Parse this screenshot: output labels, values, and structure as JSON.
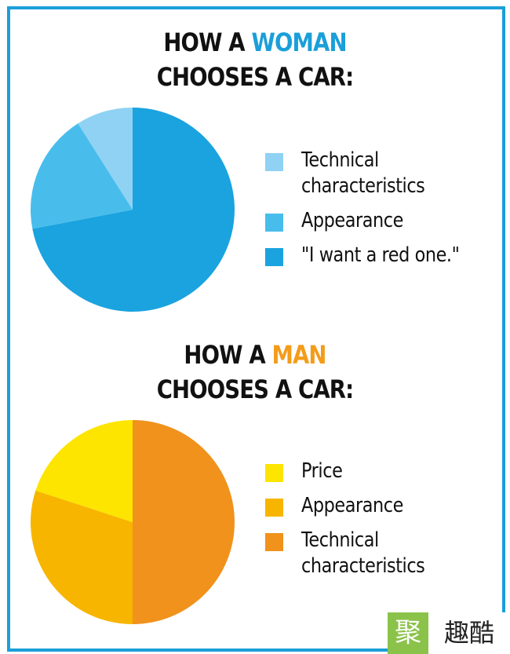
{
  "chart_data": [
    {
      "type": "pie",
      "title": {
        "prefix": "HOW A ",
        "highlight": "WOMAN",
        "line2": "CHOOSES A CAR:",
        "highlight_color": "#1a9fd9"
      },
      "slices": [
        {
          "name": "\"I want a red one.\"",
          "value": 72,
          "color": "#1aa3df"
        },
        {
          "name": "Appearance",
          "value": 19,
          "color": "#48bdec"
        },
        {
          "name": "Technical characteristics",
          "value": 9,
          "color": "#8fd2f4"
        }
      ],
      "legend": [
        {
          "label": "Technical\ncharacteristics",
          "color": "#8fd2f4"
        },
        {
          "label": "Appearance",
          "color": "#48bdec"
        },
        {
          "label": "\"I want a red one.\"",
          "color": "#1aa3df"
        }
      ],
      "legend_position": "right"
    },
    {
      "type": "pie",
      "title": {
        "prefix": "HOW A ",
        "highlight": "MAN",
        "line2": "CHOOSES A CAR:",
        "highlight_color": "#f39c1a"
      },
      "slices": [
        {
          "name": "Technical characteristics",
          "value": 50,
          "color": "#f0921c"
        },
        {
          "name": "Appearance",
          "value": 30,
          "color": "#f7b500"
        },
        {
          "name": "Price",
          "value": 20,
          "color": "#fde500"
        }
      ],
      "legend": [
        {
          "label": "Price",
          "color": "#fde500"
        },
        {
          "label": "Appearance",
          "color": "#f7b500"
        },
        {
          "label": "Technical\ncharacteristics",
          "color": "#f0921c"
        }
      ],
      "legend_position": "right"
    }
  ],
  "watermark": {
    "left": "聚",
    "right": "趣酷"
  }
}
